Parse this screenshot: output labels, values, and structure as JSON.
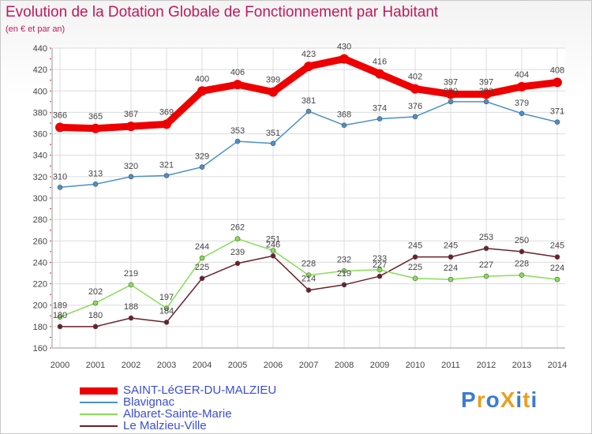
{
  "header": {
    "title": "Evolution de la Dotation Globale de Fonctionnement par Habitant",
    "subtitle": "(en € et par an)"
  },
  "logo": {
    "text": "ProXiti",
    "colors": [
      "#3a7bd5",
      "#e8a020",
      "#3a7bd5",
      "#e8a020",
      "#3a7bd5",
      "#e8a020",
      "#3a7bd5"
    ]
  },
  "chart_data": {
    "type": "line",
    "title": "Evolution de la Dotation Globale de Fonctionnement par Habitant",
    "subtitle": "(en € et par an)",
    "xlabel": "",
    "ylabel": "",
    "categories": [
      "2000",
      "2001",
      "2002",
      "2003",
      "2004",
      "2005",
      "2006",
      "2007",
      "2008",
      "2009",
      "2010",
      "2011",
      "2012",
      "2013",
      "2014"
    ],
    "ylim": [
      160,
      440
    ],
    "yticks": [
      160,
      180,
      200,
      220,
      240,
      260,
      280,
      300,
      320,
      340,
      360,
      380,
      400,
      420,
      440
    ],
    "grid": true,
    "legend_position": "bottom-left",
    "series": [
      {
        "name": "SAINT-LéGER-DU-MALZIEU",
        "color": "#ee0000",
        "values": [
          366,
          365,
          367,
          369,
          400,
          406,
          399,
          423,
          430,
          416,
          402,
          397,
          397,
          404,
          408
        ]
      },
      {
        "name": "Blavignac",
        "color": "#4a90c8",
        "values": [
          310,
          313,
          320,
          321,
          329,
          353,
          351,
          381,
          368,
          374,
          376,
          390,
          390,
          379,
          371
        ]
      },
      {
        "name": "Albaret-Sainte-Marie",
        "color": "#88dd55",
        "values": [
          189,
          202,
          219,
          197,
          244,
          262,
          251,
          228,
          232,
          233,
          225,
          224,
          227,
          228,
          224
        ]
      },
      {
        "name": "Le Malzieu-Ville",
        "color": "#6b1f2a",
        "values": [
          180,
          180,
          188,
          184,
          225,
          239,
          246,
          214,
          219,
          227,
          245,
          245,
          253,
          250,
          245
        ]
      }
    ]
  }
}
